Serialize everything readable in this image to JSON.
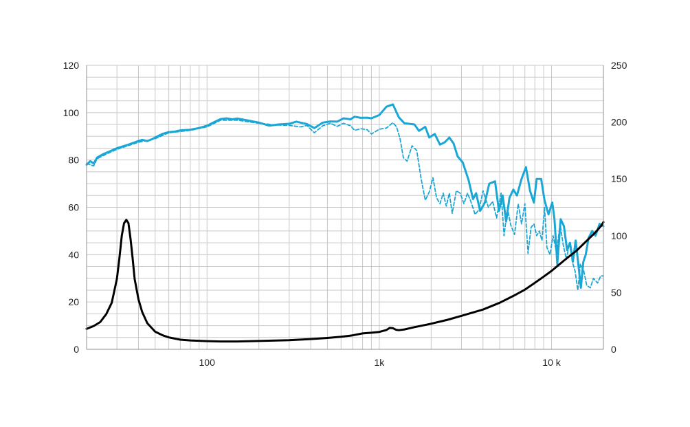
{
  "chart_data": {
    "type": "line",
    "x_scale": "log",
    "xlim": [
      20,
      20000
    ],
    "ylim": [
      0,
      120
    ],
    "y2lim": [
      0,
      250
    ],
    "grid": true,
    "x_tick_labels": [
      {
        "value": 100,
        "label": "100"
      },
      {
        "value": 1000,
        "label": "1k"
      },
      {
        "value": 10000,
        "label": "10 k"
      }
    ],
    "y_tick_labels": [
      "0",
      "20",
      "40",
      "60",
      "80",
      "100",
      "120"
    ],
    "y2_tick_labels": [
      "0",
      "50",
      "100",
      "150",
      "200",
      "250"
    ],
    "colors": {
      "spl": "#1aa7d6",
      "impedance": "#000000",
      "grid": "#c8c8c8",
      "axis": "#909090"
    },
    "series": [
      {
        "axis": "left",
        "style": "solid",
        "color": "#1aa7d6",
        "points": [
          [
            20,
            78
          ],
          [
            21,
            79.5
          ],
          [
            22,
            78.5
          ],
          [
            23,
            81
          ],
          [
            25,
            82.5
          ],
          [
            28,
            84
          ],
          [
            30,
            85
          ],
          [
            35,
            86.5
          ],
          [
            40,
            88
          ],
          [
            42,
            88.5
          ],
          [
            45,
            88
          ],
          [
            48,
            88.8
          ],
          [
            50,
            89.5
          ],
          [
            55,
            91
          ],
          [
            60,
            91.8
          ],
          [
            65,
            92
          ],
          [
            70,
            92.5
          ],
          [
            80,
            92.8
          ],
          [
            90,
            93.5
          ],
          [
            100,
            94.5
          ],
          [
            110,
            96
          ],
          [
            120,
            97.3
          ],
          [
            130,
            97.6
          ],
          [
            140,
            97.2
          ],
          [
            150,
            97.5
          ],
          [
            170,
            96.8
          ],
          [
            200,
            95.8
          ],
          [
            230,
            94.5
          ],
          [
            260,
            95
          ],
          [
            300,
            95.3
          ],
          [
            330,
            96.2
          ],
          [
            380,
            95.2
          ],
          [
            420,
            93.5
          ],
          [
            470,
            95.8
          ],
          [
            520,
            96.3
          ],
          [
            570,
            96.2
          ],
          [
            620,
            97.6
          ],
          [
            680,
            97.2
          ],
          [
            720,
            98.3
          ],
          [
            780,
            97.8
          ],
          [
            850,
            97.9
          ],
          [
            900,
            97.6
          ],
          [
            1000,
            99
          ],
          [
            1100,
            102.5
          ],
          [
            1200,
            103.5
          ],
          [
            1300,
            98
          ],
          [
            1400,
            95.5
          ],
          [
            1600,
            95
          ],
          [
            1700,
            92.3
          ],
          [
            1850,
            94
          ],
          [
            1950,
            89.5
          ],
          [
            2100,
            91
          ],
          [
            2250,
            86.5
          ],
          [
            2400,
            87.5
          ],
          [
            2550,
            89.5
          ],
          [
            2700,
            87
          ],
          [
            2850,
            81.5
          ],
          [
            3050,
            79
          ],
          [
            3300,
            71.5
          ],
          [
            3500,
            63.5
          ],
          [
            3650,
            66
          ],
          [
            3850,
            58.5
          ],
          [
            4100,
            62
          ],
          [
            4350,
            70
          ],
          [
            4700,
            71
          ],
          [
            4950,
            58.5
          ],
          [
            5200,
            65
          ],
          [
            5450,
            54
          ],
          [
            5700,
            64
          ],
          [
            6000,
            67.5
          ],
          [
            6300,
            65
          ],
          [
            6700,
            72
          ],
          [
            7100,
            77
          ],
          [
            7500,
            67
          ],
          [
            7900,
            62
          ],
          [
            8200,
            72
          ],
          [
            8700,
            72
          ],
          [
            9100,
            63
          ],
          [
            9600,
            57
          ],
          [
            10100,
            62
          ],
          [
            10400,
            55
          ],
          [
            10800,
            36
          ],
          [
            11300,
            55
          ],
          [
            11800,
            52
          ],
          [
            12300,
            42
          ],
          [
            12800,
            45
          ],
          [
            13300,
            37
          ],
          [
            13800,
            46
          ],
          [
            14300,
            36
          ],
          [
            14800,
            26
          ],
          [
            15300,
            37
          ],
          [
            15800,
            40
          ],
          [
            16400,
            47
          ],
          [
            17200,
            50
          ],
          [
            18000,
            48
          ],
          [
            19000,
            53
          ],
          [
            20000,
            52
          ]
        ]
      },
      {
        "axis": "left",
        "style": "dashed",
        "color": "#1aa7d6",
        "points": [
          [
            20,
            78.5
          ],
          [
            22,
            77.5
          ],
          [
            23,
            80.5
          ],
          [
            26,
            82.5
          ],
          [
            30,
            84.5
          ],
          [
            40,
            87.5
          ],
          [
            50,
            89
          ],
          [
            60,
            91.5
          ],
          [
            80,
            92.5
          ],
          [
            100,
            94
          ],
          [
            120,
            96.8
          ],
          [
            150,
            96.8
          ],
          [
            200,
            95.5
          ],
          [
            250,
            94.8
          ],
          [
            300,
            94.6
          ],
          [
            350,
            94
          ],
          [
            380,
            94.6
          ],
          [
            420,
            91.5
          ],
          [
            470,
            94.5
          ],
          [
            520,
            95.5
          ],
          [
            570,
            94.2
          ],
          [
            620,
            95.5
          ],
          [
            680,
            94.5
          ],
          [
            720,
            92.5
          ],
          [
            780,
            93.2
          ],
          [
            850,
            92.8
          ],
          [
            900,
            91
          ],
          [
            950,
            92
          ],
          [
            1000,
            93
          ],
          [
            1100,
            93.5
          ],
          [
            1200,
            95.8
          ],
          [
            1260,
            94
          ],
          [
            1320,
            89
          ],
          [
            1380,
            81
          ],
          [
            1450,
            79.5
          ],
          [
            1550,
            86
          ],
          [
            1650,
            84
          ],
          [
            1750,
            72
          ],
          [
            1850,
            63
          ],
          [
            1950,
            66.5
          ],
          [
            2050,
            72.5
          ],
          [
            2150,
            64
          ],
          [
            2250,
            61.5
          ],
          [
            2350,
            66
          ],
          [
            2450,
            60.5
          ],
          [
            2550,
            66
          ],
          [
            2650,
            57.5
          ],
          [
            2800,
            67
          ],
          [
            2950,
            66
          ],
          [
            3100,
            61.5
          ],
          [
            3250,
            66
          ],
          [
            3400,
            62.5
          ],
          [
            3600,
            57
          ],
          [
            3800,
            59
          ],
          [
            4000,
            67
          ],
          [
            4300,
            60
          ],
          [
            4550,
            62.5
          ],
          [
            4800,
            55.5
          ],
          [
            5100,
            66
          ],
          [
            5300,
            48
          ],
          [
            5550,
            59.5
          ],
          [
            5800,
            52.5
          ],
          [
            6100,
            48.5
          ],
          [
            6400,
            61.5
          ],
          [
            6700,
            53
          ],
          [
            7000,
            61.5
          ],
          [
            7300,
            40.5
          ],
          [
            7600,
            51.5
          ],
          [
            7900,
            53
          ],
          [
            8200,
            48
          ],
          [
            8500,
            50
          ],
          [
            8800,
            46
          ],
          [
            9100,
            60
          ],
          [
            9400,
            43
          ],
          [
            9800,
            40
          ],
          [
            10200,
            48
          ],
          [
            10700,
            41
          ],
          [
            11200,
            53
          ],
          [
            11700,
            44
          ],
          [
            12200,
            38
          ],
          [
            12700,
            45
          ],
          [
            13200,
            37
          ],
          [
            13700,
            33
          ],
          [
            14200,
            25
          ],
          [
            14700,
            36
          ],
          [
            15400,
            33
          ],
          [
            16000,
            27
          ],
          [
            16800,
            26
          ],
          [
            17500,
            30
          ],
          [
            18500,
            28
          ],
          [
            19300,
            31
          ],
          [
            20000,
            31
          ]
        ]
      },
      {
        "axis": "right",
        "style": "solid",
        "color": "#000000",
        "points": [
          [
            20,
            18
          ],
          [
            22,
            20.5
          ],
          [
            24,
            24
          ],
          [
            26,
            31
          ],
          [
            28,
            41
          ],
          [
            30,
            62
          ],
          [
            31,
            80
          ],
          [
            32,
            100
          ],
          [
            33,
            111
          ],
          [
            34,
            114
          ],
          [
            35,
            111
          ],
          [
            36,
            97
          ],
          [
            37,
            80
          ],
          [
            38,
            62
          ],
          [
            40,
            44
          ],
          [
            42,
            33
          ],
          [
            45,
            23
          ],
          [
            50,
            15.5
          ],
          [
            55,
            12.5
          ],
          [
            60,
            10.5
          ],
          [
            70,
            8.5
          ],
          [
            80,
            7.8
          ],
          [
            100,
            7.2
          ],
          [
            120,
            6.9
          ],
          [
            150,
            6.9
          ],
          [
            200,
            7.3
          ],
          [
            300,
            8
          ],
          [
            400,
            9
          ],
          [
            500,
            10
          ],
          [
            600,
            11
          ],
          [
            700,
            12.3
          ],
          [
            800,
            14
          ],
          [
            900,
            14.6
          ],
          [
            1000,
            15.3
          ],
          [
            1100,
            17
          ],
          [
            1150,
            18.8
          ],
          [
            1200,
            18.6
          ],
          [
            1250,
            17.2
          ],
          [
            1300,
            16.8
          ],
          [
            1400,
            17.5
          ],
          [
            1600,
            19.5
          ],
          [
            2000,
            22.5
          ],
          [
            2500,
            26
          ],
          [
            3000,
            29.5
          ],
          [
            4000,
            35
          ],
          [
            5000,
            41
          ],
          [
            6000,
            47
          ],
          [
            7000,
            52.5
          ],
          [
            8000,
            58.5
          ],
          [
            9000,
            64
          ],
          [
            10000,
            69
          ],
          [
            12000,
            79
          ],
          [
            14000,
            87
          ],
          [
            16000,
            95.5
          ],
          [
            18000,
            103
          ],
          [
            19500,
            109
          ],
          [
            20000,
            112
          ]
        ]
      }
    ]
  }
}
